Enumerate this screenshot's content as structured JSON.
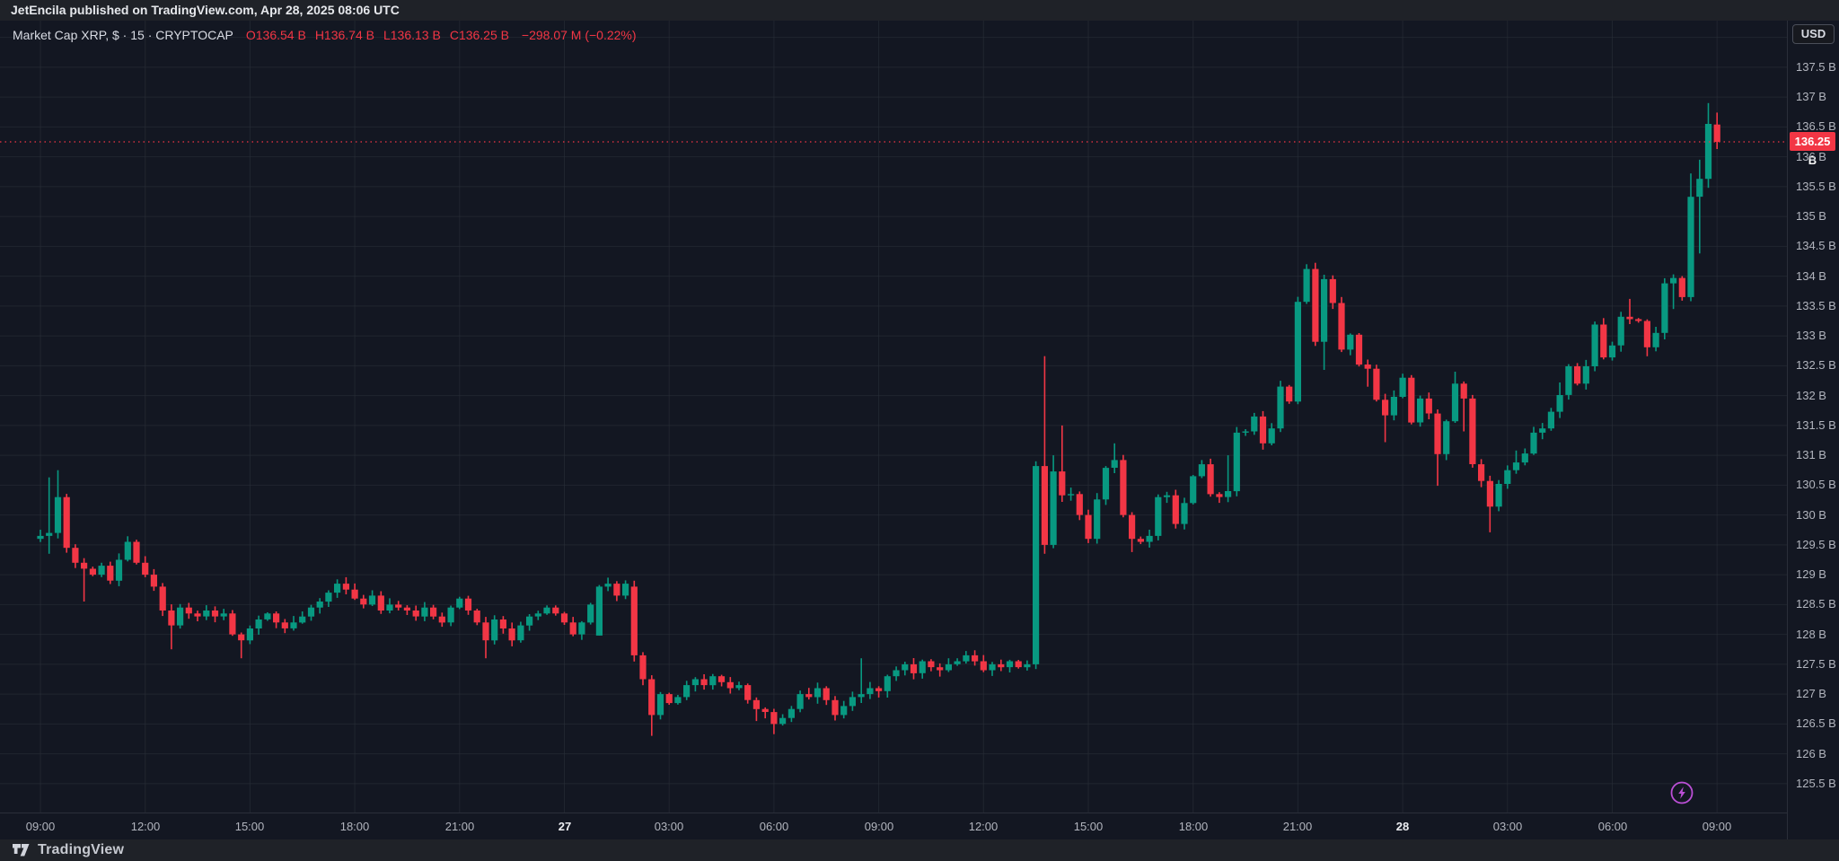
{
  "top_bar": {
    "publish_line": "JetEncila published on TradingView.com, Apr 28, 2025 08:06 UTC"
  },
  "bottom_bar": {
    "brand": "TradingView"
  },
  "legend": {
    "symbol_title": "Market Cap XRP, $ · 15 · CRYPTOCAP",
    "ohlc": [
      {
        "label": "O",
        "value": "136.54 B"
      },
      {
        "label": "H",
        "value": "136.74 B"
      },
      {
        "label": "L",
        "value": "136.13 B"
      },
      {
        "label": "C",
        "value": "136.25 B"
      }
    ],
    "change": "−298.07 M (−0.22%)"
  },
  "price_axis": {
    "currency_button": "USD",
    "last_price_label": "136.25 B",
    "labels": [
      {
        "v": 137.5,
        "label": "137.5 B"
      },
      {
        "v": 137.0,
        "label": "137 B"
      },
      {
        "v": 136.5,
        "label": "136.5 B"
      },
      {
        "v": 136.0,
        "label": "136 B"
      },
      {
        "v": 135.5,
        "label": "135.5 B"
      },
      {
        "v": 135.0,
        "label": "135 B"
      },
      {
        "v": 134.5,
        "label": "134.5 B"
      },
      {
        "v": 134.0,
        "label": "134 B"
      },
      {
        "v": 133.5,
        "label": "133.5 B"
      },
      {
        "v": 133.0,
        "label": "133 B"
      },
      {
        "v": 132.5,
        "label": "132.5 B"
      },
      {
        "v": 132.0,
        "label": "132 B"
      },
      {
        "v": 131.5,
        "label": "131.5 B"
      },
      {
        "v": 131.0,
        "label": "131 B"
      },
      {
        "v": 130.5,
        "label": "130.5 B"
      },
      {
        "v": 130.0,
        "label": "130 B"
      },
      {
        "v": 129.5,
        "label": "129.5 B"
      },
      {
        "v": 129.0,
        "label": "129 B"
      },
      {
        "v": 128.5,
        "label": "128.5 B"
      },
      {
        "v": 128.0,
        "label": "128 B"
      },
      {
        "v": 127.5,
        "label": "127.5 B"
      },
      {
        "v": 127.0,
        "label": "127 B"
      },
      {
        "v": 126.5,
        "label": "126.5 B"
      },
      {
        "v": 126.0,
        "label": "126 B"
      },
      {
        "v": 125.5,
        "label": "125.5 B"
      }
    ]
  },
  "time_axis": {
    "labels": [
      {
        "t": 1,
        "label": "09:00",
        "emphasis": false
      },
      {
        "t": 4,
        "label": "12:00",
        "emphasis": false
      },
      {
        "t": 7,
        "label": "15:00",
        "emphasis": false
      },
      {
        "t": 10,
        "label": "18:00",
        "emphasis": false
      },
      {
        "t": 13,
        "label": "21:00",
        "emphasis": false
      },
      {
        "t": 16,
        "label": "27",
        "emphasis": true
      },
      {
        "t": 19,
        "label": "03:00",
        "emphasis": false
      },
      {
        "t": 22,
        "label": "06:00",
        "emphasis": false
      },
      {
        "t": 25,
        "label": "09:00",
        "emphasis": false
      },
      {
        "t": 28,
        "label": "12:00",
        "emphasis": false
      },
      {
        "t": 31,
        "label": "15:00",
        "emphasis": false
      },
      {
        "t": 34,
        "label": "18:00",
        "emphasis": false
      },
      {
        "t": 37,
        "label": "21:00",
        "emphasis": false
      },
      {
        "t": 40,
        "label": "28",
        "emphasis": true
      },
      {
        "t": 43,
        "label": "03:00",
        "emphasis": false
      },
      {
        "t": 46,
        "label": "06:00",
        "emphasis": false
      },
      {
        "t": 49,
        "label": "09:00",
        "emphasis": false
      }
    ]
  },
  "colors": {
    "up": "#089981",
    "down": "#f23645",
    "chart_bg": "#131722",
    "frame_bg": "#1f2228",
    "grid": "rgba(42,46,57,0.6)",
    "axis_text": "#b2b5be",
    "badge_bg": "#f23645",
    "flash_icon": "#bb4fd6"
  },
  "chart_data": {
    "type": "candlestick",
    "title": "Market Cap XRP, $ · 15 · CRYPTOCAP",
    "interval_minutes": 15,
    "currency": "USD",
    "time_start": "2025-04-26 08:00 UTC",
    "time_end": "2025-04-28 08:00 UTC",
    "ylim": [
      125.0,
      138.28
    ],
    "grid_step_billion": 0.5,
    "last_candle": {
      "o": 136.54,
      "h": 136.74,
      "l": 136.13,
      "c": 136.25,
      "change": "−298.07 M",
      "change_pct": "−0.22%"
    },
    "last_price": 136.25,
    "first_open": 129.6,
    "step_hours": 0.25,
    "closes": [
      129.65,
      129.7,
      130.3,
      129.45,
      129.2,
      129.1,
      129.0,
      129.15,
      128.9,
      129.25,
      129.55,
      129.2,
      129.0,
      128.8,
      128.4,
      128.15,
      128.45,
      128.35,
      128.3,
      128.4,
      128.3,
      128.35,
      128.0,
      127.9,
      128.1,
      128.25,
      128.35,
      128.2,
      128.1,
      128.2,
      128.3,
      128.45,
      128.55,
      128.7,
      128.85,
      128.75,
      128.6,
      128.5,
      128.65,
      128.4,
      128.5,
      128.45,
      128.4,
      128.3,
      128.45,
      128.3,
      128.2,
      128.45,
      128.6,
      128.4,
      128.2,
      127.9,
      128.25,
      128.1,
      127.9,
      128.15,
      128.3,
      128.35,
      128.45,
      128.35,
      128.2,
      128.0,
      128.2,
      128.5,
      128.8,
      128.85,
      128.65,
      128.85,
      127.65,
      127.25,
      126.65,
      127.0,
      126.85,
      126.95,
      127.15,
      127.25,
      127.15,
      127.3,
      127.2,
      127.1,
      127.15,
      126.9,
      126.75,
      126.7,
      126.5,
      126.6,
      126.75,
      127.0,
      126.95,
      127.1,
      126.9,
      126.65,
      126.8,
      126.95,
      127.0,
      127.1,
      127.05,
      127.3,
      127.4,
      127.5,
      127.35,
      127.55,
      127.45,
      127.4,
      127.5,
      127.55,
      127.65,
      127.55,
      127.4,
      127.5,
      127.45,
      127.55,
      127.45,
      127.5,
      130.82,
      129.5,
      130.73,
      130.33,
      130.35,
      130.0,
      129.6,
      130.26,
      130.79,
      130.92,
      130.0,
      129.6,
      129.55,
      129.65,
      130.3,
      130.33,
      129.85,
      130.2,
      130.65,
      130.85,
      130.35,
      130.3,
      130.4,
      131.38,
      131.4,
      131.65,
      131.2,
      131.45,
      132.15,
      131.9,
      133.57,
      134.12,
      132.9,
      133.95,
      133.55,
      132.77,
      133.02,
      132.52,
      132.45,
      131.93,
      131.67,
      131.98,
      132.3,
      131.55,
      131.95,
      131.7,
      131.02,
      131.57,
      132.2,
      131.95,
      130.85,
      130.57,
      130.14,
      130.52,
      130.75,
      130.88,
      131.03,
      131.38,
      131.45,
      131.73,
      132.01,
      132.49,
      132.2,
      132.49,
      133.19,
      132.64,
      132.84,
      133.32,
      133.28,
      133.25,
      132.81,
      133.05,
      133.88,
      133.97,
      133.65,
      135.33,
      135.63,
      136.55,
      136.25
    ],
    "overrides": {
      "1": {
        "h": 130.63,
        "l": 129.35
      },
      "2": {
        "h": 130.75
      },
      "5": {
        "l": 128.55
      },
      "15": {
        "l": 127.75
      },
      "23": {
        "l": 127.6
      },
      "51": {
        "l": 127.6
      },
      "64": {
        "o": 127.98
      },
      "65": {
        "h": 128.95
      },
      "68": {
        "o": 128.8
      },
      "70": {
        "l": 126.3
      },
      "82": {
        "l": 126.55
      },
      "84": {
        "l": 126.33
      },
      "94": {
        "h": 127.6
      },
      "114": {
        "o": 127.5,
        "h": 130.9,
        "l": 127.42
      },
      "115": {
        "h": 132.66,
        "l": 129.35
      },
      "116": {
        "h": 131.0
      },
      "117": {
        "h": 131.5
      },
      "123": {
        "h": 131.2
      },
      "125": {
        "l": 129.38
      },
      "136": {
        "h": 131.0
      },
      "145": {
        "h": 134.2
      },
      "147": {
        "l": 132.43
      },
      "152": {
        "l": 132.15
      },
      "154": {
        "l": 131.22
      },
      "160": {
        "l": 130.49
      },
      "162": {
        "h": 132.4
      },
      "163": {
        "l": 131.4
      },
      "166": {
        "l": 129.71
      },
      "169": {
        "h": 131.08
      },
      "174": {
        "h": 132.22
      },
      "182": {
        "h": 133.62
      },
      "184": {
        "l": 132.66
      },
      "187": {
        "l": 133.45
      },
      "189": {
        "h": 135.72,
        "l": 133.58
      },
      "190": {
        "h": 135.95,
        "l": 134.38
      },
      "191": {
        "h": 136.9,
        "l": 135.48
      },
      "192": {
        "o": 136.54,
        "h": 136.74,
        "l": 136.13,
        "c": 136.25
      }
    }
  }
}
